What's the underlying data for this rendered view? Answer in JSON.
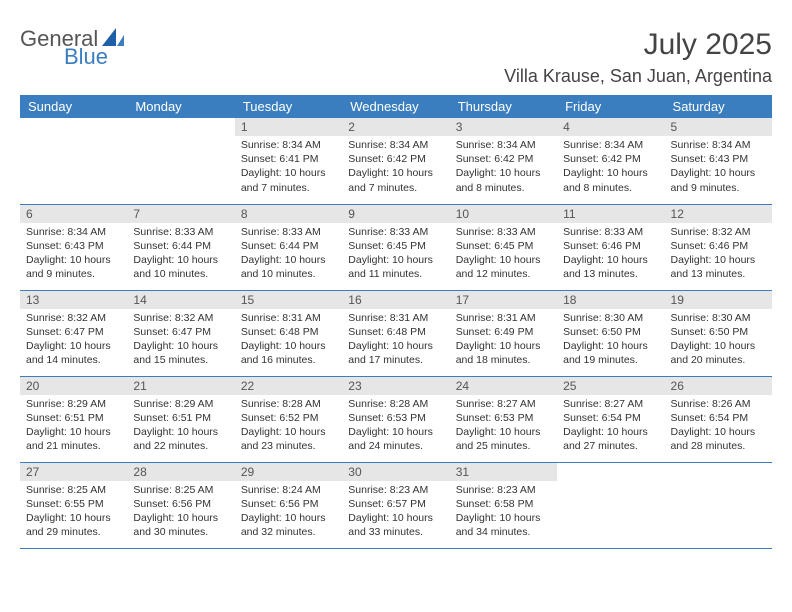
{
  "brand": {
    "word1": "General",
    "word2": "Blue",
    "word1_color": "#555555",
    "word2_color": "#3a7ebf",
    "shape_color": "#1f5fa8"
  },
  "header": {
    "month_title": "July 2025",
    "location": "Villa Krause, San Juan, Argentina"
  },
  "style": {
    "header_bg": "#3a7ebf",
    "header_text_color": "#ffffff",
    "daynum_bg": "#e6e6e6",
    "daynum_color": "#555555",
    "row_border_color": "#3a7ebf",
    "body_text_color": "#333333",
    "day_header_fontsize": 13,
    "daynum_fontsize": 12,
    "cell_fontsize": 10.5
  },
  "day_headers": [
    "Sunday",
    "Monday",
    "Tuesday",
    "Wednesday",
    "Thursday",
    "Friday",
    "Saturday"
  ],
  "weeks": [
    [
      {
        "num": "",
        "sunrise": "",
        "sunset": "",
        "daylight": ""
      },
      {
        "num": "",
        "sunrise": "",
        "sunset": "",
        "daylight": ""
      },
      {
        "num": "1",
        "sunrise": "Sunrise: 8:34 AM",
        "sunset": "Sunset: 6:41 PM",
        "daylight": "Daylight: 10 hours and 7 minutes."
      },
      {
        "num": "2",
        "sunrise": "Sunrise: 8:34 AM",
        "sunset": "Sunset: 6:42 PM",
        "daylight": "Daylight: 10 hours and 7 minutes."
      },
      {
        "num": "3",
        "sunrise": "Sunrise: 8:34 AM",
        "sunset": "Sunset: 6:42 PM",
        "daylight": "Daylight: 10 hours and 8 minutes."
      },
      {
        "num": "4",
        "sunrise": "Sunrise: 8:34 AM",
        "sunset": "Sunset: 6:42 PM",
        "daylight": "Daylight: 10 hours and 8 minutes."
      },
      {
        "num": "5",
        "sunrise": "Sunrise: 8:34 AM",
        "sunset": "Sunset: 6:43 PM",
        "daylight": "Daylight: 10 hours and 9 minutes."
      }
    ],
    [
      {
        "num": "6",
        "sunrise": "Sunrise: 8:34 AM",
        "sunset": "Sunset: 6:43 PM",
        "daylight": "Daylight: 10 hours and 9 minutes."
      },
      {
        "num": "7",
        "sunrise": "Sunrise: 8:33 AM",
        "sunset": "Sunset: 6:44 PM",
        "daylight": "Daylight: 10 hours and 10 minutes."
      },
      {
        "num": "8",
        "sunrise": "Sunrise: 8:33 AM",
        "sunset": "Sunset: 6:44 PM",
        "daylight": "Daylight: 10 hours and 10 minutes."
      },
      {
        "num": "9",
        "sunrise": "Sunrise: 8:33 AM",
        "sunset": "Sunset: 6:45 PM",
        "daylight": "Daylight: 10 hours and 11 minutes."
      },
      {
        "num": "10",
        "sunrise": "Sunrise: 8:33 AM",
        "sunset": "Sunset: 6:45 PM",
        "daylight": "Daylight: 10 hours and 12 minutes."
      },
      {
        "num": "11",
        "sunrise": "Sunrise: 8:33 AM",
        "sunset": "Sunset: 6:46 PM",
        "daylight": "Daylight: 10 hours and 13 minutes."
      },
      {
        "num": "12",
        "sunrise": "Sunrise: 8:32 AM",
        "sunset": "Sunset: 6:46 PM",
        "daylight": "Daylight: 10 hours and 13 minutes."
      }
    ],
    [
      {
        "num": "13",
        "sunrise": "Sunrise: 8:32 AM",
        "sunset": "Sunset: 6:47 PM",
        "daylight": "Daylight: 10 hours and 14 minutes."
      },
      {
        "num": "14",
        "sunrise": "Sunrise: 8:32 AM",
        "sunset": "Sunset: 6:47 PM",
        "daylight": "Daylight: 10 hours and 15 minutes."
      },
      {
        "num": "15",
        "sunrise": "Sunrise: 8:31 AM",
        "sunset": "Sunset: 6:48 PM",
        "daylight": "Daylight: 10 hours and 16 minutes."
      },
      {
        "num": "16",
        "sunrise": "Sunrise: 8:31 AM",
        "sunset": "Sunset: 6:48 PM",
        "daylight": "Daylight: 10 hours and 17 minutes."
      },
      {
        "num": "17",
        "sunrise": "Sunrise: 8:31 AM",
        "sunset": "Sunset: 6:49 PM",
        "daylight": "Daylight: 10 hours and 18 minutes."
      },
      {
        "num": "18",
        "sunrise": "Sunrise: 8:30 AM",
        "sunset": "Sunset: 6:50 PM",
        "daylight": "Daylight: 10 hours and 19 minutes."
      },
      {
        "num": "19",
        "sunrise": "Sunrise: 8:30 AM",
        "sunset": "Sunset: 6:50 PM",
        "daylight": "Daylight: 10 hours and 20 minutes."
      }
    ],
    [
      {
        "num": "20",
        "sunrise": "Sunrise: 8:29 AM",
        "sunset": "Sunset: 6:51 PM",
        "daylight": "Daylight: 10 hours and 21 minutes."
      },
      {
        "num": "21",
        "sunrise": "Sunrise: 8:29 AM",
        "sunset": "Sunset: 6:51 PM",
        "daylight": "Daylight: 10 hours and 22 minutes."
      },
      {
        "num": "22",
        "sunrise": "Sunrise: 8:28 AM",
        "sunset": "Sunset: 6:52 PM",
        "daylight": "Daylight: 10 hours and 23 minutes."
      },
      {
        "num": "23",
        "sunrise": "Sunrise: 8:28 AM",
        "sunset": "Sunset: 6:53 PM",
        "daylight": "Daylight: 10 hours and 24 minutes."
      },
      {
        "num": "24",
        "sunrise": "Sunrise: 8:27 AM",
        "sunset": "Sunset: 6:53 PM",
        "daylight": "Daylight: 10 hours and 25 minutes."
      },
      {
        "num": "25",
        "sunrise": "Sunrise: 8:27 AM",
        "sunset": "Sunset: 6:54 PM",
        "daylight": "Daylight: 10 hours and 27 minutes."
      },
      {
        "num": "26",
        "sunrise": "Sunrise: 8:26 AM",
        "sunset": "Sunset: 6:54 PM",
        "daylight": "Daylight: 10 hours and 28 minutes."
      }
    ],
    [
      {
        "num": "27",
        "sunrise": "Sunrise: 8:25 AM",
        "sunset": "Sunset: 6:55 PM",
        "daylight": "Daylight: 10 hours and 29 minutes."
      },
      {
        "num": "28",
        "sunrise": "Sunrise: 8:25 AM",
        "sunset": "Sunset: 6:56 PM",
        "daylight": "Daylight: 10 hours and 30 minutes."
      },
      {
        "num": "29",
        "sunrise": "Sunrise: 8:24 AM",
        "sunset": "Sunset: 6:56 PM",
        "daylight": "Daylight: 10 hours and 32 minutes."
      },
      {
        "num": "30",
        "sunrise": "Sunrise: 8:23 AM",
        "sunset": "Sunset: 6:57 PM",
        "daylight": "Daylight: 10 hours and 33 minutes."
      },
      {
        "num": "31",
        "sunrise": "Sunrise: 8:23 AM",
        "sunset": "Sunset: 6:58 PM",
        "daylight": "Daylight: 10 hours and 34 minutes."
      },
      {
        "num": "",
        "sunrise": "",
        "sunset": "",
        "daylight": ""
      },
      {
        "num": "",
        "sunrise": "",
        "sunset": "",
        "daylight": ""
      }
    ]
  ]
}
